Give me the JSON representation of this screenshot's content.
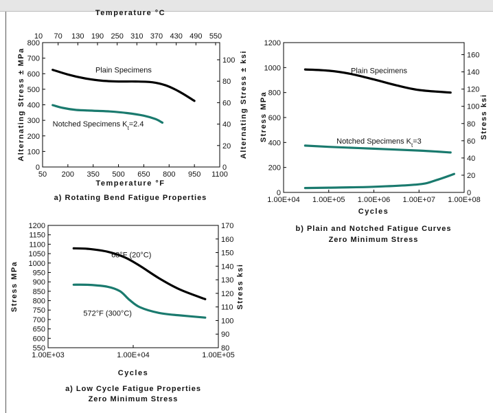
{
  "colors": {
    "plain": "#000000",
    "notched": "#1a7a6e"
  },
  "chart_data": [
    {
      "type": "line",
      "id": "a1",
      "caption": "a) Rotating Bend Fatigue Properties",
      "xlabel": "Temperature °F",
      "xlabel_top": "Temperature °C",
      "ylabel": "Alternating Stress ± MPa",
      "ylabel_right": "Alternating Stress ± ksi",
      "xlim": [
        50,
        1100
      ],
      "ylim": [
        0,
        800
      ],
      "y2lim": [
        0,
        116
      ],
      "x_ticks": [
        "50",
        "200",
        "350",
        "500",
        "650",
        "800",
        "950",
        "1100"
      ],
      "x_top_ticks": [
        "10",
        "70",
        "130",
        "190",
        "250",
        "310",
        "370",
        "430",
        "490",
        "550"
      ],
      "y_ticks": [
        "0",
        "100",
        "200",
        "300",
        "400",
        "500",
        "600",
        "700",
        "800"
      ],
      "y2_ticks": [
        "0",
        "20",
        "40",
        "60",
        "80",
        "100"
      ],
      "series": [
        {
          "name": "Plain Specimens",
          "color_key": "plain",
          "x": [
            110,
            200,
            300,
            400,
            500,
            600,
            700,
            780,
            860,
            950
          ],
          "y": [
            625,
            595,
            570,
            555,
            550,
            550,
            545,
            525,
            485,
            425
          ]
        },
        {
          "name": "Notched Specimens Kt=2.4",
          "color_key": "notched",
          "x": [
            110,
            170,
            250,
            350,
            450,
            550,
            650,
            720,
            760
          ],
          "y": [
            398,
            380,
            367,
            362,
            357,
            347,
            330,
            308,
            285
          ]
        }
      ],
      "annotations": [
        {
          "text": "Plain Specimens",
          "x": 530,
          "y": 608
        },
        {
          "text": "Notched Specimens K",
          "sub": "t",
          "after": "=2.4",
          "x": 380,
          "y": 260
        }
      ]
    },
    {
      "type": "line",
      "id": "b",
      "caption_lines": [
        "b) Plain and Notched Fatigue Curves",
        "Zero Minimum Stress"
      ],
      "xlabel": "Cycles",
      "ylabel": "Stress MPa",
      "ylabel_right": "Stress ksi",
      "xscale": "log",
      "xlim": [
        10000,
        100000000
      ],
      "ylim": [
        0,
        1200
      ],
      "y2lim": [
        0,
        174
      ],
      "x_ticks": [
        "1.00E+04",
        "1.00E+05",
        "1.00E+06",
        "1.00E+07",
        "1.00E+08"
      ],
      "y_ticks": [
        "0",
        "200",
        "400",
        "600",
        "800",
        "1000",
        "1200"
      ],
      "y2_ticks": [
        "0",
        "20",
        "40",
        "60",
        "80",
        "100",
        "120",
        "140",
        "160"
      ],
      "series": [
        {
          "name": "Plain Specimens",
          "color_key": "plain",
          "x": [
            30000,
            100000,
            300000,
            1000000,
            3000000,
            10000000,
            50000000
          ],
          "y": [
            985,
            975,
            950,
            905,
            860,
            820,
            800
          ]
        },
        {
          "name": "Notched Specimens Kt=3",
          "color_key": "notched",
          "x": [
            30000,
            100000,
            1000000,
            10000000,
            50000000
          ],
          "y": [
            375,
            365,
            350,
            335,
            320
          ]
        },
        {
          "name": "",
          "color_key": "notched",
          "x": [
            30000,
            100000,
            1000000,
            10000000,
            25000000,
            60000000
          ],
          "y": [
            35,
            38,
            45,
            65,
            100,
            148
          ]
        }
      ],
      "annotations": [
        {
          "text": "Plain Specimens",
          "xpos": 1300000,
          "y": 955
        },
        {
          "text": "Notched Specimens K",
          "sub": "t",
          "after": "=3",
          "xpos": 1300000,
          "y": 390
        }
      ]
    },
    {
      "type": "line",
      "id": "a2",
      "caption_lines": [
        "a) Low Cycle Fatigue Properties",
        "Zero Minimum Stress"
      ],
      "xlabel": "Cycles",
      "ylabel": "Stress MPa",
      "ylabel_right": "Stress ksi",
      "xscale": "log",
      "xlim": [
        1000,
        100000
      ],
      "ylim": [
        550,
        1200
      ],
      "y2lim": [
        80,
        170
      ],
      "x_ticks": [
        "1.00E+03",
        "1.00E+04",
        "1.00E+05"
      ],
      "y_ticks": [
        "550",
        "600",
        "650",
        "700",
        "750",
        "800",
        "850",
        "900",
        "950",
        "1000",
        "1050",
        "1100",
        "1150",
        "1200"
      ],
      "y2_ticks": [
        "80",
        "90",
        "100",
        "110",
        "120",
        "130",
        "140",
        "150",
        "160",
        "170"
      ],
      "series": [
        {
          "name": "68°F (20°C)",
          "color_key": "plain",
          "x": [
            2000,
            3000,
            5000,
            8000,
            12000,
            20000,
            35000,
            70000
          ],
          "y": [
            1078,
            1075,
            1060,
            1030,
            985,
            920,
            860,
            808
          ]
        },
        {
          "name": "572°F (300°C)",
          "color_key": "notched",
          "x": [
            2000,
            3000,
            5000,
            7000,
            9000,
            12000,
            20000,
            35000,
            70000
          ],
          "y": [
            885,
            884,
            874,
            850,
            805,
            765,
            735,
            722,
            710
          ]
        }
      ],
      "annotations": [
        {
          "text": "68°F (20°C)",
          "xpos": 9500,
          "y": 1030
        },
        {
          "text": "572°F (300°C)",
          "xpos": 5000,
          "y": 720
        }
      ]
    }
  ]
}
